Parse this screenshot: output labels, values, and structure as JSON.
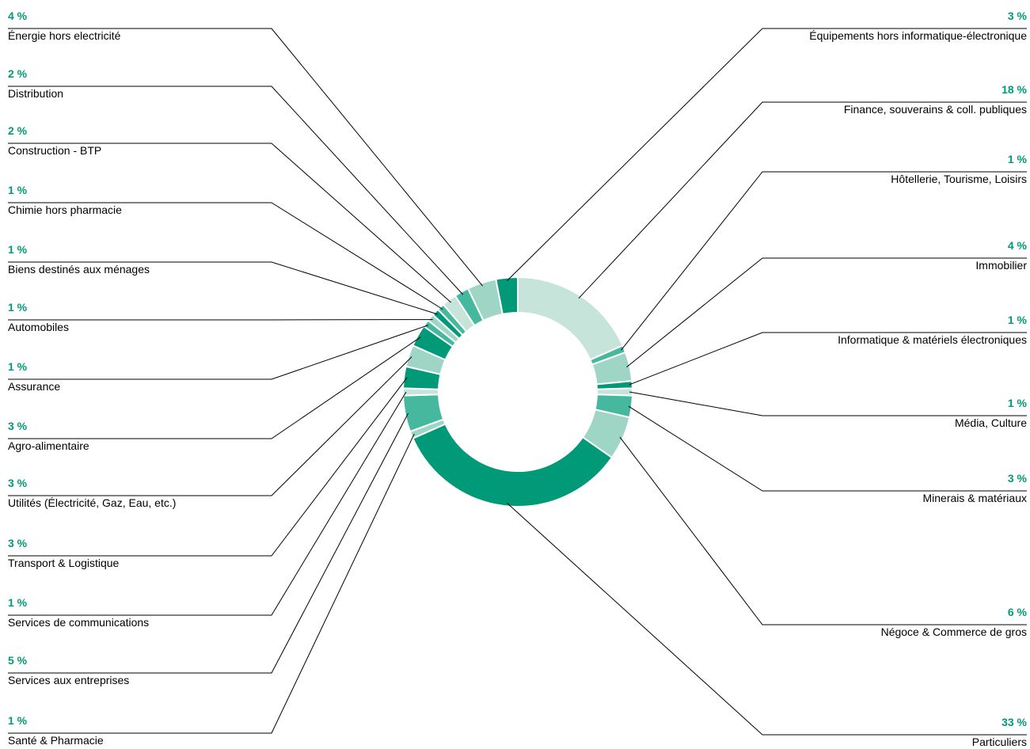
{
  "chart_data": {
    "type": "donut",
    "categories": [
      "Finance, souverains & coll. publiques",
      "Hôtellerie, Tourisme, Loisirs",
      "Immobilier",
      "Informatique & matériels électroniques",
      "Média, Culture",
      "Minerais & matériaux",
      "Négoce & Commerce de gros",
      "Particuliers",
      "Santé & Pharmacie",
      "Services aux entreprises",
      "Services de communications",
      "Transport & Logistique",
      "Utilités (Électricité, Gaz, Eau, etc.)",
      "Agro-alimentaire",
      "Assurance",
      "Automobiles",
      "Biens destinés aux ménages",
      "Chimie hors pharmacie",
      "Construction - BTP",
      "Distribution",
      "Énergie hors electricité",
      "Équipements hors informatique-électronique"
    ],
    "values": [
      18,
      1,
      4,
      1,
      1,
      3,
      6,
      33,
      1,
      5,
      1,
      3,
      3,
      3,
      1,
      1,
      1,
      1,
      2,
      2,
      4,
      3
    ],
    "value_labels": [
      "18 %",
      "1 %",
      "4 %",
      "1 %",
      "1 %",
      "3 %",
      "6 %",
      "33 %",
      "1 %",
      "5 %",
      "1 %",
      "3 %",
      "3 %",
      "3 %",
      "1 %",
      "1 %",
      "1 %",
      "1 %",
      "2 %",
      "2 %",
      "4 %",
      "3 %"
    ],
    "colors": [
      "#c6e4da",
      "#45b89e",
      "#9fd5c5",
      "#009a78",
      "#c6e4da",
      "#45b89e",
      "#9fd5c5",
      "#009a78",
      "#9fd5c5",
      "#45b89e",
      "#c6e4da",
      "#009a78",
      "#9fd5c5",
      "#009a78",
      "#45b89e",
      "#9fd5c5",
      "#009a78",
      "#45b89e",
      "#c6e4da",
      "#45b89e",
      "#9fd5c5",
      "#009a78"
    ]
  }
}
